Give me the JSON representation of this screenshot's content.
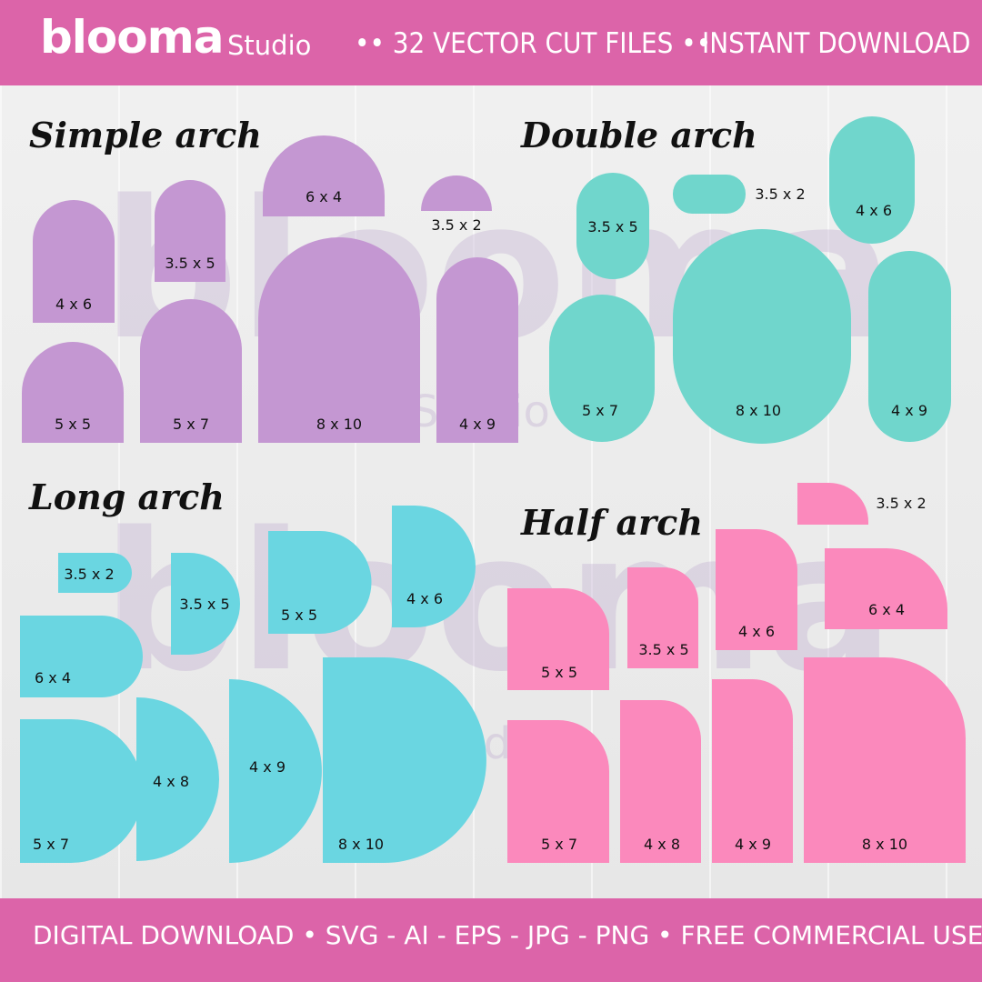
{
  "brand": {
    "logo": "blooma",
    "sub": "Studio"
  },
  "header": {
    "tagline_1": "•• 32 VECTOR CUT FILES ••",
    "tagline_2": "INSTANT DOWNLOAD"
  },
  "footer": {
    "text": "DIGITAL DOWNLOAD  •  SVG - AI - EPS - JPG - PNG  •  FREE COMMERCIAL USE"
  },
  "colors": {
    "band": "#dc64a9",
    "purple": "#c497d2",
    "teal": "#70d6cc",
    "cyan": "#6ad6e1",
    "pink": "#fb89bc",
    "watermark": "#c8b3d6"
  },
  "watermark": {
    "logo": "blooma",
    "sub": "Studio"
  },
  "sections": {
    "simple": {
      "title": "Simple arch",
      "labels": [
        "4 x 6",
        "3.5 x 5",
        "6 x 4",
        "3.5 x 2",
        "5 x 5",
        "5 x 7",
        "8 x 10",
        "4 x 9"
      ]
    },
    "double": {
      "title": "Double arch",
      "labels": [
        "3.5 x 5",
        "3.5 x 2",
        "4 x 6",
        "5 x 7",
        "8 x 10",
        "4 x 9"
      ]
    },
    "long": {
      "title": "Long arch",
      "labels": [
        "3.5 x 2",
        "3.5 x 5",
        "5 x 5",
        "4 x 6",
        "6 x 4",
        "5 x 7",
        "4 x 8",
        "4 x 9",
        "8 x 10"
      ]
    },
    "half": {
      "title": "Half arch",
      "labels": [
        "3.5 x 2",
        "5 x 5",
        "3.5 x 5",
        "4 x 6",
        "6 x 4",
        "5 x 7",
        "4 x 8",
        "4 x 9",
        "8 x 10"
      ]
    }
  }
}
